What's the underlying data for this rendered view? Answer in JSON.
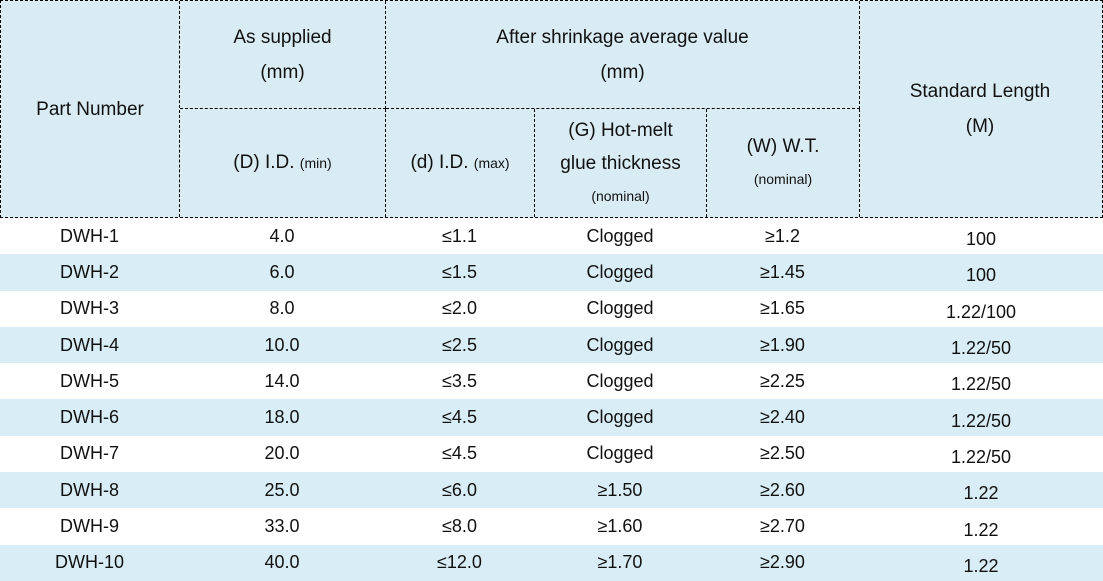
{
  "table": {
    "colors": {
      "header_bg": "#d9ecf4",
      "stripe_bg": "#d9edf6",
      "border": "#000000"
    },
    "header": {
      "part_number": "Part Number",
      "as_supplied": {
        "line1": "As supplied",
        "line2": "(mm)"
      },
      "after_shrinkage": {
        "line1": "After shrinkage average value",
        "line2": "(mm)"
      },
      "standard_length": {
        "line1": "Standard Length",
        "line2": "(M)"
      },
      "sub_supplied_id": {
        "main": "(D) I.D.",
        "small": "(min)"
      },
      "sub_shrunk_id": {
        "main": "(d) I.D.",
        "small": "(max)"
      },
      "sub_glue": {
        "line1": "(G) Hot-melt",
        "line2": "glue thickness",
        "small": "(nominal)"
      },
      "sub_wt": {
        "main": "(W) W.T.",
        "small": "(nominal)"
      }
    },
    "rows": [
      {
        "part": "DWH-1",
        "supplied_id": "4.0",
        "shrunk_id": "≤1.1",
        "glue": "Clogged",
        "wt": "≥1.2",
        "length": "100"
      },
      {
        "part": "DWH-2",
        "supplied_id": "6.0",
        "shrunk_id": "≤1.5",
        "glue": "Clogged",
        "wt": "≥1.45",
        "length": "100"
      },
      {
        "part": "DWH-3",
        "supplied_id": "8.0",
        "shrunk_id": "≤2.0",
        "glue": "Clogged",
        "wt": "≥1.65",
        "length": "1.22/100"
      },
      {
        "part": "DWH-4",
        "supplied_id": "10.0",
        "shrunk_id": "≤2.5",
        "glue": "Clogged",
        "wt": "≥1.90",
        "length": "1.22/50"
      },
      {
        "part": "DWH-5",
        "supplied_id": "14.0",
        "shrunk_id": "≤3.5",
        "glue": "Clogged",
        "wt": "≥2.25",
        "length": "1.22/50"
      },
      {
        "part": "DWH-6",
        "supplied_id": "18.0",
        "shrunk_id": "≤4.5",
        "glue": "Clogged",
        "wt": "≥2.40",
        "length": "1.22/50"
      },
      {
        "part": "DWH-7",
        "supplied_id": "20.0",
        "shrunk_id": "≤4.5",
        "glue": "Clogged",
        "wt": "≥2.50",
        "length": "1.22/50"
      },
      {
        "part": "DWH-8",
        "supplied_id": "25.0",
        "shrunk_id": "≤6.0",
        "glue": "≥1.50",
        "wt": "≥2.60",
        "length": "1.22"
      },
      {
        "part": "DWH-9",
        "supplied_id": "33.0",
        "shrunk_id": "≤8.0",
        "glue": "≥1.60",
        "wt": "≥2.70",
        "length": "1.22"
      },
      {
        "part": "DWH-10",
        "supplied_id": "40.0",
        "shrunk_id": "≤12.0",
        "glue": "≥1.70",
        "wt": "≥2.90",
        "length": "1.22"
      }
    ]
  }
}
